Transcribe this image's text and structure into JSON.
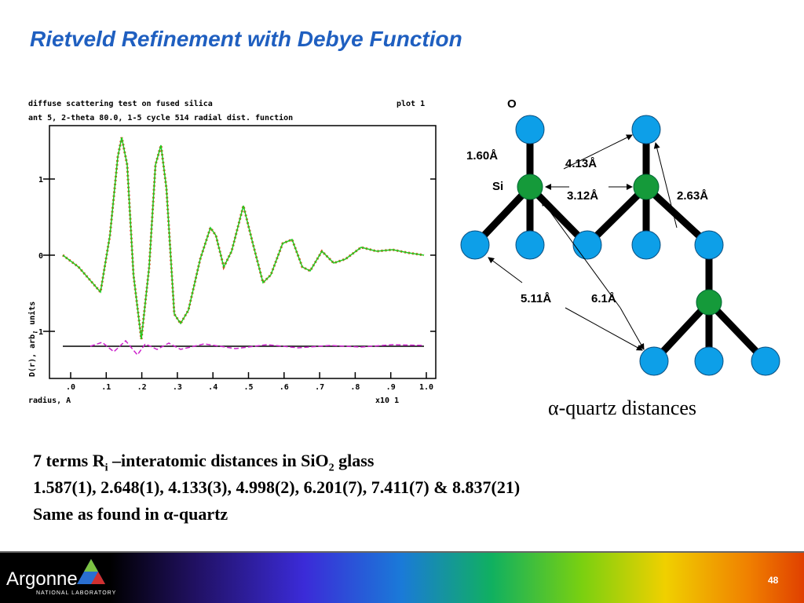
{
  "title": "Rietveld Refinement with Debye Function",
  "plot": {
    "header": [
      "diffuse scattering test on fused silica",
      "plot 1",
      "ant 5, 2-theta 80.0, 1-5 cycle 514 radial dist. function"
    ],
    "y_tick_labels": [
      "1",
      "0",
      "-1"
    ],
    "x_tick_labels": [
      ".0",
      ".1",
      ".2",
      ".3",
      ".4",
      ".5",
      ".6",
      ".7",
      ".8",
      ".9",
      "1.0"
    ],
    "y_label": "D(r), arb. units",
    "x_label": "radius, A",
    "x_scale": "x10 1"
  },
  "diagram": {
    "atom_labels": [
      "O",
      "Si"
    ],
    "distances": [
      "1.60Å",
      "4.13Å",
      "3.12Å",
      "2.63Å",
      "5.11Å",
      "6.1Å"
    ],
    "caption": "α-quartz distances"
  },
  "body": {
    "line1": [
      "7 terms R",
      "i",
      " –interatomic distances in SiO",
      "2",
      " glass"
    ],
    "line2": "1.587(1), 2.648(1), 4.133(3), 4.998(2), 6.201(7), 7.411(7) & 8.837(21)",
    "line3": "Same as found in α-quartz"
  },
  "footer": {
    "logo": "Argonne",
    "logo_sub": "NATIONAL LABORATORY",
    "page_number": "48"
  }
}
